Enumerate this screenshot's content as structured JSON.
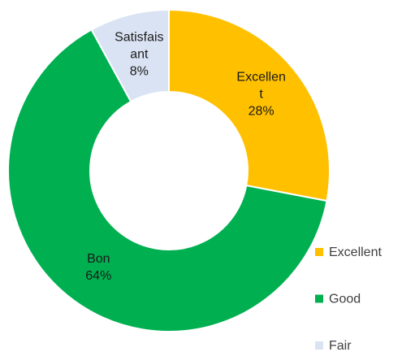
{
  "chart_data": {
    "type": "donut",
    "categories": [
      "Excellent",
      "Bon",
      "Satisfaisant"
    ],
    "values": [
      28,
      64,
      8
    ],
    "value_labels": [
      "28%",
      "64%",
      "8%"
    ],
    "colors": [
      "#ffc000",
      "#00b050",
      "#dae3f3"
    ],
    "legend": {
      "labels": [
        "Excellent",
        "Good",
        "Fair"
      ],
      "position": "right"
    }
  }
}
